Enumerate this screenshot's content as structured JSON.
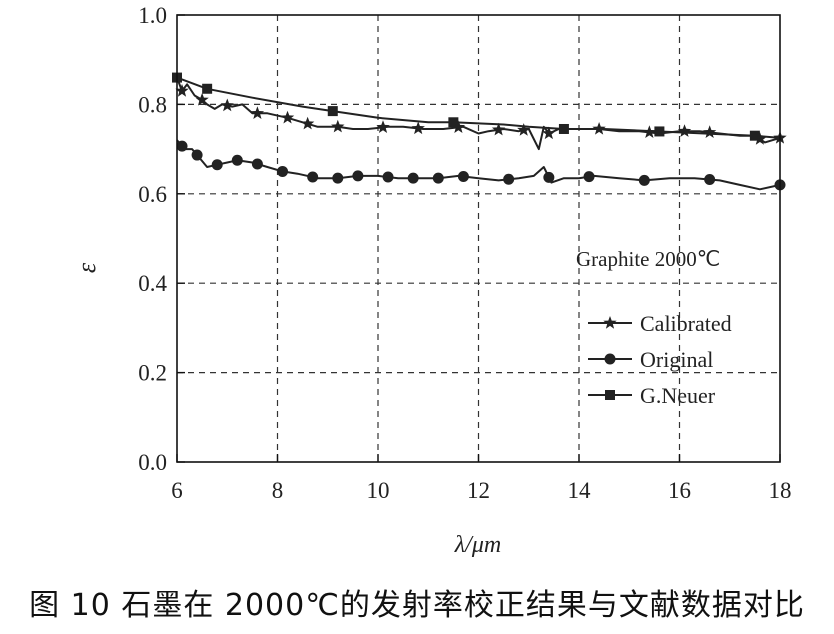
{
  "chart_data": {
    "type": "line",
    "xlabel": "λ/μm",
    "ylabel": "ε",
    "xlim": [
      6,
      18
    ],
    "ylim": [
      0,
      1.0
    ],
    "xticks": [
      "6",
      "8",
      "10",
      "12",
      "14",
      "16",
      "18"
    ],
    "yticks": [
      "0.0",
      "0.2",
      "0.4",
      "0.6",
      "0.8",
      "1.0"
    ],
    "grid": true,
    "annotation": "Graphite 2000℃",
    "legend_position": "right",
    "series": [
      {
        "name": "Calibrated",
        "marker": "star",
        "color": "#222222",
        "x": [
          6.0,
          6.1,
          6.2,
          6.35,
          6.5,
          6.6,
          6.75,
          6.9,
          7.1,
          7.3,
          7.5,
          7.8,
          8.2,
          8.5,
          8.8,
          9.2,
          9.5,
          9.8,
          10.2,
          10.5,
          10.9,
          11.3,
          11.7,
          12.0,
          12.2,
          12.5,
          12.8,
          13.0,
          13.2,
          13.3,
          13.4,
          13.6,
          14.0,
          14.4,
          14.8,
          15.2,
          15.6,
          16.0,
          16.4,
          16.8,
          17.2,
          17.5,
          17.7,
          18.0
        ],
        "y": [
          0.86,
          0.83,
          0.845,
          0.82,
          0.81,
          0.8,
          0.79,
          0.8,
          0.795,
          0.8,
          0.78,
          0.78,
          0.77,
          0.76,
          0.75,
          0.75,
          0.745,
          0.745,
          0.75,
          0.75,
          0.745,
          0.745,
          0.75,
          0.735,
          0.74,
          0.745,
          0.74,
          0.745,
          0.7,
          0.75,
          0.735,
          0.745,
          0.745,
          0.745,
          0.74,
          0.74,
          0.735,
          0.74,
          0.74,
          0.735,
          0.73,
          0.73,
          0.715,
          0.725
        ],
        "marker_x": [
          6.1,
          6.5,
          7.0,
          7.6,
          8.2,
          8.6,
          9.2,
          10.1,
          10.8,
          11.6,
          12.4,
          12.9,
          13.4,
          14.4,
          15.4,
          16.1,
          16.6,
          17.6,
          18.0
        ]
      },
      {
        "name": "Original",
        "marker": "circle",
        "color": "#222222",
        "x": [
          6.0,
          6.15,
          6.3,
          6.45,
          6.6,
          6.8,
          7.0,
          7.2,
          7.5,
          7.8,
          8.1,
          8.4,
          8.8,
          9.2,
          9.6,
          10.0,
          10.4,
          10.8,
          11.2,
          11.6,
          12.0,
          12.4,
          12.8,
          13.1,
          13.3,
          13.45,
          13.7,
          14.0,
          14.3,
          14.8,
          15.3,
          15.8,
          16.3,
          16.8,
          17.2,
          17.6,
          18.0
        ],
        "y": [
          0.72,
          0.7,
          0.7,
          0.68,
          0.66,
          0.665,
          0.67,
          0.675,
          0.67,
          0.66,
          0.65,
          0.645,
          0.635,
          0.635,
          0.64,
          0.64,
          0.635,
          0.635,
          0.635,
          0.64,
          0.635,
          0.63,
          0.635,
          0.64,
          0.66,
          0.625,
          0.635,
          0.635,
          0.64,
          0.635,
          0.63,
          0.635,
          0.635,
          0.63,
          0.62,
          0.61,
          0.62
        ],
        "marker_x": [
          6.1,
          6.4,
          6.8,
          7.2,
          7.6,
          8.1,
          8.7,
          9.2,
          9.6,
          10.2,
          10.7,
          11.2,
          11.7,
          12.6,
          13.4,
          14.2,
          15.3,
          16.6,
          18.0
        ]
      },
      {
        "name": "G.Neuer",
        "marker": "square",
        "color": "#222222",
        "x": [
          6.0,
          6.6,
          7.5,
          8.5,
          9.1,
          10.0,
          11.0,
          11.5,
          12.5,
          13.0,
          13.7,
          14.5,
          15.5,
          16.5,
          17.5,
          18.0
        ],
        "y": [
          0.86,
          0.835,
          0.815,
          0.795,
          0.785,
          0.77,
          0.76,
          0.76,
          0.755,
          0.75,
          0.745,
          0.745,
          0.74,
          0.735,
          0.73,
          0.725
        ],
        "marker_x": [
          6.0,
          6.6,
          9.1,
          11.5,
          13.7,
          15.6,
          17.5
        ]
      }
    ]
  },
  "caption": "图 10 石墨在 2000℃的发射率校正结果与文献数据对比"
}
